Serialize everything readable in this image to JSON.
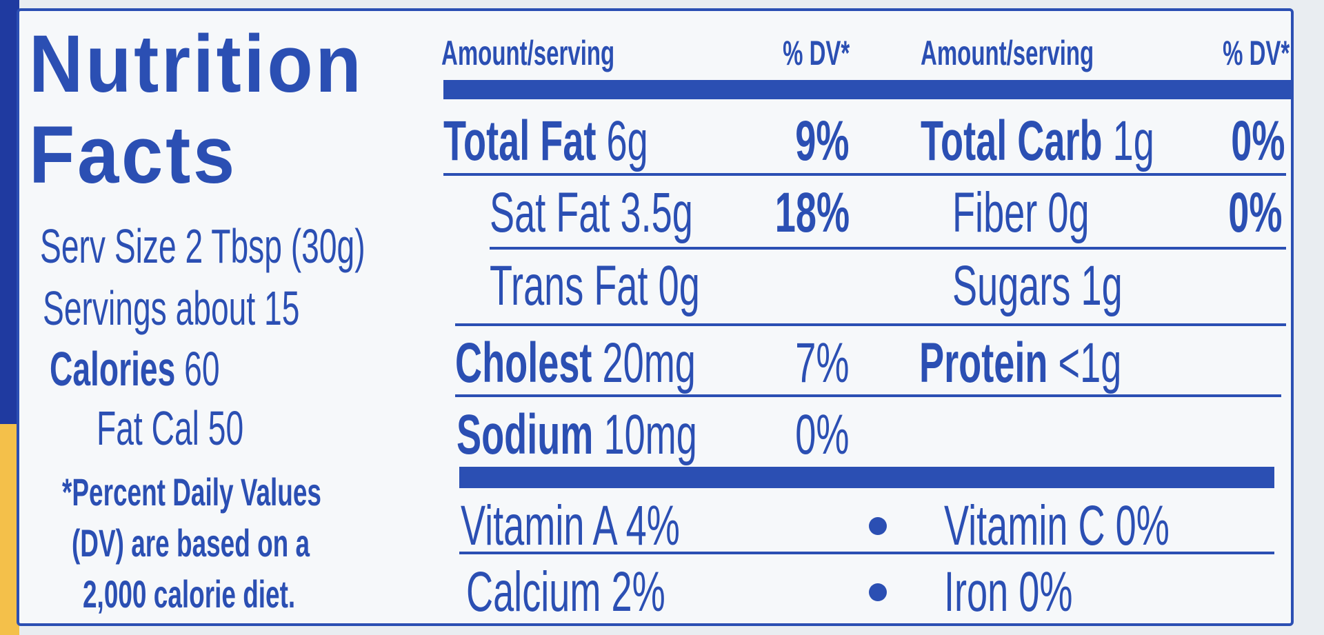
{
  "colors": {
    "ink": "#2b4fb3",
    "label_bg": "#f6f8fa",
    "left_band_blue": "#1f3aa0",
    "left_band_yellow": "#f4c04a"
  },
  "title": {
    "line1": "Nutrition",
    "line2": "Facts"
  },
  "serving": {
    "size": "Serv Size 2 Tbsp (30g)",
    "servings": "Servings about 15",
    "calories_label": "Calories",
    "calories_value": "60",
    "fat_cal": "Fat Cal 50"
  },
  "footnote": [
    "*Percent Daily Values",
    "(DV) are based on a",
    "2,000 calorie diet."
  ],
  "headers": {
    "amount": "Amount/serving",
    "dv": "% DV*"
  },
  "left_rows": [
    {
      "label": "Total Fat",
      "amount": "6g",
      "dv": "9%"
    },
    {
      "label": "Sat Fat",
      "amount": "3.5g",
      "dv": "18%"
    },
    {
      "label": "Trans Fat",
      "amount": "0g",
      "dv": ""
    },
    {
      "label": "Cholest",
      "amount": "20mg",
      "dv": "7%"
    },
    {
      "label": "Sodium",
      "amount": "10mg",
      "dv": "0%"
    }
  ],
  "right_rows": [
    {
      "label": "Total Carb",
      "amount": "1g",
      "dv": "0%"
    },
    {
      "label": "Fiber",
      "amount": "0g",
      "dv": "0%"
    },
    {
      "label": "Sugars",
      "amount": "1g",
      "dv": ""
    },
    {
      "label": "Protein",
      "amount": "<1g",
      "dv": ""
    }
  ],
  "vitamins": [
    "Vitamin A 4%",
    "Vitamin C 0%",
    "Calcium 2%",
    "Iron 0%"
  ]
}
